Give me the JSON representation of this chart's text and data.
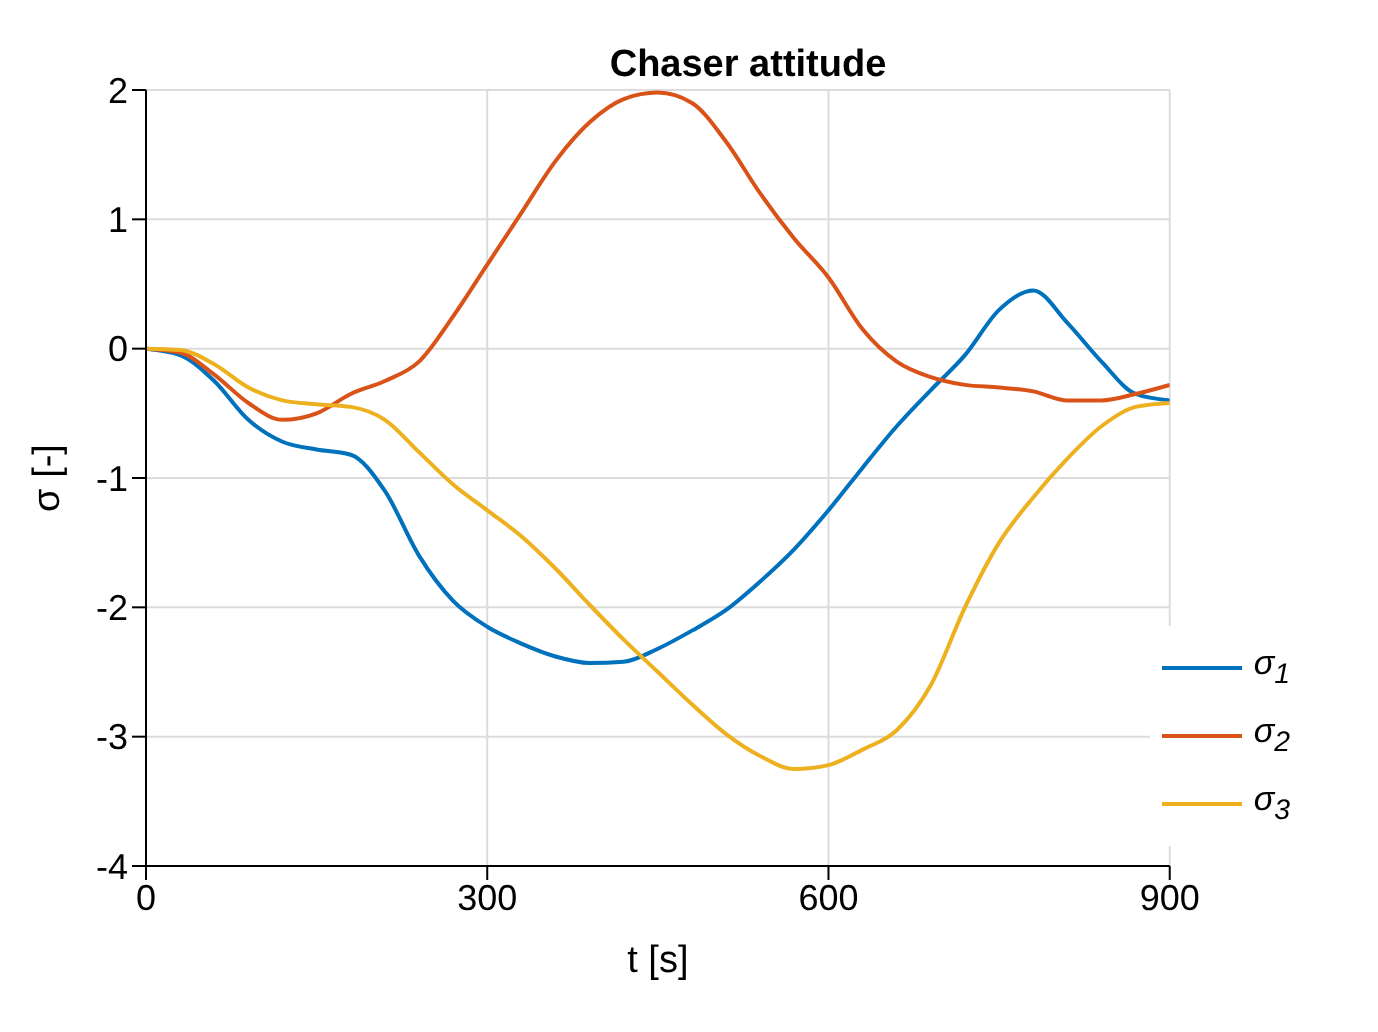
{
  "chart_data": {
    "type": "line",
    "title": "Chaser attitude",
    "xlabel": "t [s]",
    "ylabel": "σ [-]",
    "x": [
      0,
      30,
      60,
      90,
      120,
      150,
      180,
      210,
      240,
      270,
      300,
      330,
      360,
      390,
      420,
      450,
      480,
      510,
      540,
      570,
      600,
      630,
      660,
      690,
      720,
      750,
      780,
      810,
      840,
      870,
      900
    ],
    "series": [
      {
        "name": "σ$_{1}$",
        "color": "#0072bd",
        "values": [
          0,
          -0.05,
          -0.25,
          -0.55,
          -0.72,
          -0.78,
          -0.82,
          -1.1,
          -1.6,
          -1.95,
          -2.15,
          -2.28,
          -2.38,
          -2.43,
          -2.42,
          -2.32,
          -2.18,
          -2.02,
          -1.8,
          -1.55,
          -1.25,
          -0.92,
          -0.6,
          -0.32,
          -0.05,
          0.3,
          0.45,
          0.2,
          -0.1,
          -0.35,
          -0.4
        ]
      },
      {
        "name": "σ$_{2}$",
        "color": "#d95319",
        "values": [
          0,
          -0.03,
          -0.2,
          -0.42,
          -0.55,
          -0.5,
          -0.35,
          -0.25,
          -0.1,
          0.25,
          0.65,
          1.05,
          1.45,
          1.75,
          1.93,
          1.98,
          1.9,
          1.6,
          1.2,
          0.85,
          0.55,
          0.15,
          -0.1,
          -0.22,
          -0.28,
          -0.3,
          -0.33,
          -0.4,
          -0.4,
          -0.35,
          -0.28
        ]
      },
      {
        "name": "σ$_{3}$",
        "color": "#edb120",
        "values": [
          0,
          -0.01,
          -0.12,
          -0.3,
          -0.4,
          -0.43,
          -0.45,
          -0.55,
          -0.8,
          -1.05,
          -1.25,
          -1.45,
          -1.7,
          -1.98,
          -2.25,
          -2.5,
          -2.75,
          -2.98,
          -3.15,
          -3.25,
          -3.22,
          -3.1,
          -2.95,
          -2.6,
          -2.0,
          -1.5,
          -1.15,
          -0.85,
          -0.6,
          -0.45,
          -0.42
        ]
      }
    ],
    "xlim": [
      0,
      900
    ],
    "xticks": [
      0,
      300,
      600,
      900
    ],
    "ylim": [
      -4,
      2
    ],
    "yticks": [
      -4,
      -3,
      -2,
      -1,
      0,
      1,
      2
    ],
    "grid": true,
    "legend": "bottom right",
    "marker": "none",
    "line_style": "solid"
  }
}
